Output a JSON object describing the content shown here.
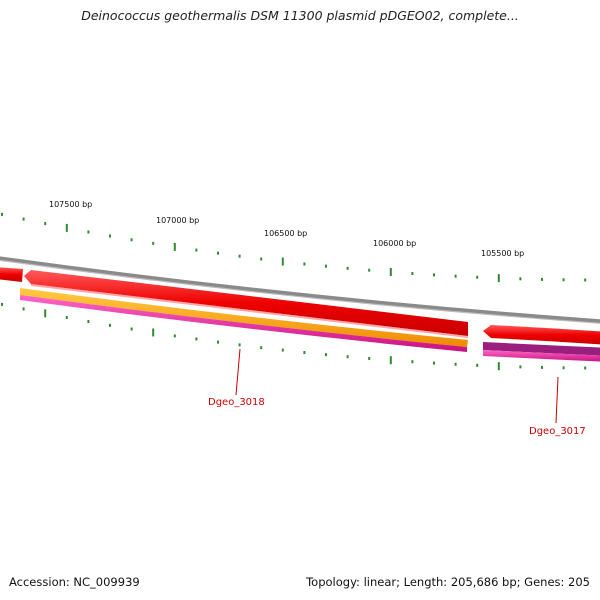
{
  "title": "Deinococcus geothermalis DSM 11300 plasmid pDGEO02, complete...",
  "ticks": [
    {
      "label": "107500 bp"
    },
    {
      "label": "107000 bp"
    },
    {
      "label": "106500 bp"
    },
    {
      "label": "106000 bp"
    },
    {
      "label": "105500 bp"
    }
  ],
  "genes": [
    {
      "label": "Dgeo_3018"
    },
    {
      "label": "Dgeo_3017"
    }
  ],
  "footer": {
    "accession": "Accession: NC_009939",
    "summary": "Topology: linear; Length: 205,686 bp; Genes: 205"
  },
  "colors": {
    "backbone": "#8a8a8a",
    "cds": "#ee0000",
    "gene_orange": "#ff9900",
    "gene_magenta": "#e0189a",
    "tick": "#2e8b2e",
    "label": "#cc0000"
  }
}
